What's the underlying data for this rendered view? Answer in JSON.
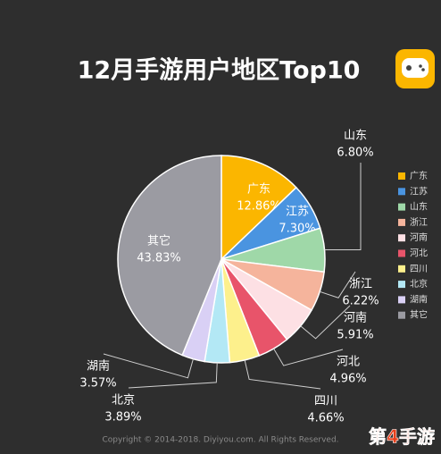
{
  "chart_data": {
    "type": "pie",
    "title": "12月手游用户地区Top10",
    "categories": [
      "广东",
      "江苏",
      "山东",
      "浙江",
      "河南",
      "河北",
      "四川",
      "北京",
      "湖南",
      "其它"
    ],
    "values": [
      12.86,
      7.3,
      6.8,
      6.22,
      5.91,
      4.96,
      4.66,
      3.89,
      3.57,
      43.83
    ],
    "value_labels": [
      "12.86%",
      "7.30%",
      "6.80%",
      "6.22%",
      "5.91%",
      "4.96%",
      "4.66%",
      "3.89%",
      "3.57%",
      "43.83%"
    ],
    "colors": [
      "#fbb600",
      "#4a94e0",
      "#9fd8a8",
      "#f5b49c",
      "#fde0e4",
      "#e8546a",
      "#fdf08c",
      "#b3e8f5",
      "#d9d0f5",
      "#9b9ba2"
    ],
    "legend": "right",
    "footer": "Copyright © 2014-2018. Diyiyou.com. All Rights Reserved.",
    "watermark": "第4手游"
  }
}
